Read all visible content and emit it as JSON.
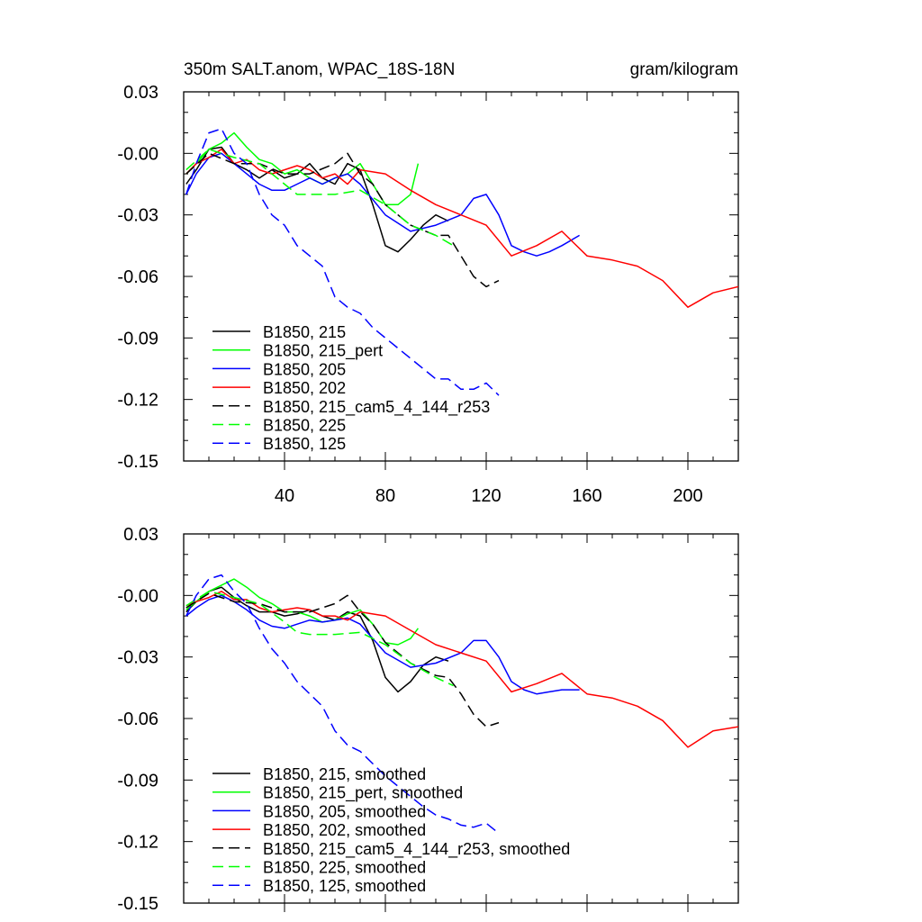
{
  "header": {
    "left_title": "350m SALT.anom, WPAC_18S-18N",
    "right_units": "gram/kilogram"
  },
  "chart_data": [
    {
      "type": "line",
      "title": "350m SALT.anom, WPAC_18S-18N",
      "units": "gram/kilogram",
      "xlim": [
        0,
        220
      ],
      "ylim": [
        -0.15,
        0.03
      ],
      "xticks": [
        40,
        80,
        120,
        160,
        200
      ],
      "xtick_labels": [
        "40",
        "80",
        "120",
        "160",
        "200"
      ],
      "yticks": [
        0.03,
        0.0,
        -0.03,
        -0.06,
        -0.09,
        -0.12,
        -0.15
      ],
      "ytick_labels": [
        "0.03",
        "-0.00",
        "-0.03",
        "-0.06",
        "-0.09",
        "-0.12",
        "-0.15"
      ],
      "legend_position": "bottom-left",
      "series": [
        {
          "name": "B1850, 215",
          "color": "#000000",
          "dash": "solid",
          "x": [
            1,
            5,
            10,
            15,
            20,
            25,
            30,
            35,
            40,
            45,
            50,
            55,
            60,
            65,
            70,
            75,
            80,
            85,
            90,
            95,
            100,
            105
          ],
          "y": [
            -0.015,
            -0.008,
            0.002,
            0.003,
            -0.005,
            -0.008,
            -0.012,
            -0.008,
            -0.012,
            -0.01,
            -0.005,
            -0.012,
            -0.015,
            -0.005,
            -0.008,
            -0.025,
            -0.045,
            -0.048,
            -0.042,
            -0.035,
            -0.03,
            -0.033
          ]
        },
        {
          "name": "B1850, 215_pert",
          "color": "#00ff00",
          "dash": "solid",
          "x": [
            1,
            5,
            10,
            15,
            20,
            25,
            30,
            35,
            40,
            45,
            50,
            55,
            60,
            65,
            70,
            75,
            80,
            85,
            90,
            93
          ],
          "y": [
            -0.01,
            -0.005,
            0.002,
            0.005,
            0.01,
            0.003,
            -0.003,
            -0.005,
            -0.01,
            -0.008,
            -0.012,
            -0.015,
            -0.012,
            -0.01,
            -0.005,
            -0.015,
            -0.025,
            -0.025,
            -0.02,
            -0.005
          ]
        },
        {
          "name": "B1850, 205",
          "color": "#0000ff",
          "dash": "solid",
          "x": [
            1,
            5,
            10,
            15,
            20,
            25,
            30,
            35,
            40,
            45,
            50,
            55,
            60,
            65,
            70,
            80,
            90,
            100,
            110,
            115,
            120,
            125,
            130,
            135,
            140,
            145,
            150,
            157
          ],
          "y": [
            -0.02,
            -0.01,
            -0.002,
            0.0,
            -0.005,
            -0.01,
            -0.015,
            -0.018,
            -0.018,
            -0.015,
            -0.012,
            -0.015,
            -0.012,
            -0.01,
            -0.015,
            -0.03,
            -0.038,
            -0.035,
            -0.03,
            -0.022,
            -0.02,
            -0.03,
            -0.045,
            -0.048,
            -0.05,
            -0.048,
            -0.045,
            -0.04
          ]
        },
        {
          "name": "B1850, 202",
          "color": "#ff0000",
          "dash": "solid",
          "x": [
            1,
            5,
            10,
            15,
            20,
            25,
            30,
            35,
            40,
            45,
            50,
            55,
            60,
            65,
            70,
            80,
            90,
            100,
            110,
            120,
            130,
            140,
            150,
            160,
            170,
            180,
            190,
            200,
            210,
            220
          ],
          "y": [
            -0.01,
            -0.005,
            -0.002,
            0.002,
            -0.005,
            -0.003,
            -0.008,
            -0.01,
            -0.008,
            -0.006,
            -0.008,
            -0.012,
            -0.01,
            -0.015,
            -0.008,
            -0.01,
            -0.018,
            -0.025,
            -0.03,
            -0.035,
            -0.05,
            -0.045,
            -0.038,
            -0.05,
            -0.052,
            -0.055,
            -0.062,
            -0.075,
            -0.068,
            -0.065
          ]
        },
        {
          "name": "B1850, 215_cam5_4_144_r253",
          "color": "#000000",
          "dash": "dashed",
          "x": [
            1,
            10,
            20,
            30,
            40,
            50,
            60,
            65,
            70,
            75,
            80,
            90,
            100,
            105,
            110,
            115,
            120,
            125
          ],
          "y": [
            -0.01,
            0.0,
            -0.005,
            -0.005,
            -0.01,
            -0.01,
            -0.005,
            0.0,
            -0.01,
            -0.015,
            -0.025,
            -0.035,
            -0.04,
            -0.04,
            -0.05,
            -0.06,
            -0.065,
            -0.062
          ]
        },
        {
          "name": "B1850, 225",
          "color": "#00ff00",
          "dash": "dashed",
          "x": [
            1,
            10,
            20,
            30,
            40,
            45,
            50,
            60,
            70,
            80,
            90,
            100,
            107
          ],
          "y": [
            -0.008,
            0.002,
            -0.002,
            -0.005,
            -0.015,
            -0.02,
            -0.02,
            -0.02,
            -0.018,
            -0.025,
            -0.035,
            -0.04,
            -0.045
          ]
        },
        {
          "name": "B1850, 125",
          "color": "#0000ff",
          "dash": "dashed",
          "x": [
            1,
            5,
            10,
            15,
            20,
            25,
            30,
            35,
            40,
            45,
            50,
            55,
            60,
            65,
            70,
            75,
            80,
            85,
            90,
            95,
            100,
            105,
            110,
            115,
            120,
            125
          ],
          "y": [
            -0.02,
            -0.005,
            0.01,
            0.012,
            0.0,
            -0.005,
            -0.02,
            -0.03,
            -0.035,
            -0.045,
            -0.05,
            -0.055,
            -0.07,
            -0.075,
            -0.078,
            -0.085,
            -0.09,
            -0.095,
            -0.1,
            -0.105,
            -0.11,
            -0.11,
            -0.115,
            -0.115,
            -0.112,
            -0.118
          ]
        }
      ]
    },
    {
      "type": "line",
      "xlim": [
        0,
        220
      ],
      "ylim": [
        -0.15,
        0.03
      ],
      "yticks": [
        0.03,
        0.0,
        -0.03,
        -0.06,
        -0.09,
        -0.12,
        -0.15
      ],
      "ytick_labels": [
        "0.03",
        "-0.00",
        "-0.03",
        "-0.06",
        "-0.09",
        "-0.12",
        "-0.15"
      ],
      "legend_position": "bottom-left",
      "series": [
        {
          "name": "B1850, 215, smoothed",
          "color": "#000000",
          "dash": "solid",
          "x": [
            1,
            5,
            10,
            15,
            20,
            25,
            30,
            35,
            40,
            45,
            50,
            55,
            60,
            65,
            70,
            75,
            80,
            85,
            90,
            95,
            100,
            105
          ],
          "y": [
            -0.008,
            -0.003,
            0.002,
            0.004,
            -0.001,
            -0.005,
            -0.008,
            -0.008,
            -0.01,
            -0.009,
            -0.007,
            -0.01,
            -0.012,
            -0.008,
            -0.01,
            -0.022,
            -0.04,
            -0.047,
            -0.042,
            -0.034,
            -0.03,
            -0.032
          ]
        },
        {
          "name": "B1850, 215_pert, smoothed",
          "color": "#00ff00",
          "dash": "solid",
          "x": [
            1,
            5,
            10,
            15,
            20,
            25,
            30,
            35,
            40,
            45,
            50,
            55,
            60,
            65,
            70,
            75,
            80,
            85,
            90,
            93
          ],
          "y": [
            -0.007,
            -0.003,
            0.002,
            0.005,
            0.008,
            0.004,
            -0.001,
            -0.004,
            -0.008,
            -0.008,
            -0.01,
            -0.013,
            -0.012,
            -0.009,
            -0.007,
            -0.014,
            -0.023,
            -0.024,
            -0.021,
            -0.016
          ]
        },
        {
          "name": "B1850, 205, smoothed",
          "color": "#0000ff",
          "dash": "solid",
          "x": [
            1,
            5,
            10,
            15,
            20,
            25,
            30,
            35,
            40,
            45,
            50,
            55,
            60,
            65,
            70,
            80,
            90,
            100,
            110,
            115,
            120,
            125,
            130,
            135,
            140,
            145,
            150,
            157
          ],
          "y": [
            -0.01,
            -0.006,
            -0.002,
            0.0,
            -0.003,
            -0.007,
            -0.012,
            -0.015,
            -0.016,
            -0.014,
            -0.012,
            -0.013,
            -0.012,
            -0.011,
            -0.014,
            -0.028,
            -0.035,
            -0.033,
            -0.028,
            -0.022,
            -0.022,
            -0.03,
            -0.042,
            -0.046,
            -0.048,
            -0.047,
            -0.046,
            -0.046
          ]
        },
        {
          "name": "B1850, 202, smoothed",
          "color": "#ff0000",
          "dash": "solid",
          "x": [
            1,
            5,
            10,
            15,
            20,
            25,
            30,
            35,
            40,
            45,
            50,
            55,
            60,
            65,
            70,
            80,
            90,
            100,
            110,
            120,
            130,
            140,
            150,
            160,
            170,
            180,
            190,
            200,
            210,
            220
          ],
          "y": [
            -0.005,
            -0.003,
            -0.001,
            0.002,
            -0.002,
            -0.002,
            -0.006,
            -0.008,
            -0.007,
            -0.006,
            -0.007,
            -0.01,
            -0.01,
            -0.012,
            -0.008,
            -0.01,
            -0.017,
            -0.024,
            -0.028,
            -0.032,
            -0.047,
            -0.043,
            -0.038,
            -0.048,
            -0.05,
            -0.054,
            -0.061,
            -0.074,
            -0.066,
            -0.064
          ]
        },
        {
          "name": "B1850, 215_cam5_4_144_r253, smoothed",
          "color": "#000000",
          "dash": "dashed",
          "x": [
            1,
            10,
            20,
            30,
            40,
            50,
            60,
            65,
            70,
            75,
            80,
            90,
            100,
            105,
            110,
            115,
            120,
            125
          ],
          "y": [
            -0.006,
            0.001,
            -0.003,
            -0.004,
            -0.008,
            -0.008,
            -0.004,
            0.0,
            -0.008,
            -0.014,
            -0.023,
            -0.033,
            -0.039,
            -0.04,
            -0.048,
            -0.058,
            -0.064,
            -0.062
          ]
        },
        {
          "name": "B1850, 225, smoothed",
          "color": "#00ff00",
          "dash": "dashed",
          "x": [
            1,
            10,
            20,
            30,
            40,
            45,
            50,
            60,
            70,
            80,
            90,
            100,
            107
          ],
          "y": [
            -0.005,
            0.002,
            -0.001,
            -0.004,
            -0.013,
            -0.018,
            -0.019,
            -0.019,
            -0.018,
            -0.024,
            -0.033,
            -0.04,
            -0.044
          ]
        },
        {
          "name": "B1850, 125, smoothed",
          "color": "#0000ff",
          "dash": "dashed",
          "x": [
            1,
            5,
            10,
            15,
            20,
            25,
            30,
            35,
            40,
            45,
            50,
            55,
            60,
            65,
            70,
            75,
            80,
            85,
            90,
            95,
            100,
            105,
            110,
            115,
            120,
            125
          ],
          "y": [
            -0.01,
            0.0,
            0.008,
            0.01,
            0.002,
            -0.004,
            -0.016,
            -0.026,
            -0.033,
            -0.042,
            -0.048,
            -0.054,
            -0.066,
            -0.073,
            -0.076,
            -0.082,
            -0.088,
            -0.093,
            -0.098,
            -0.103,
            -0.107,
            -0.109,
            -0.112,
            -0.113,
            -0.111,
            -0.116
          ]
        }
      ]
    }
  ]
}
